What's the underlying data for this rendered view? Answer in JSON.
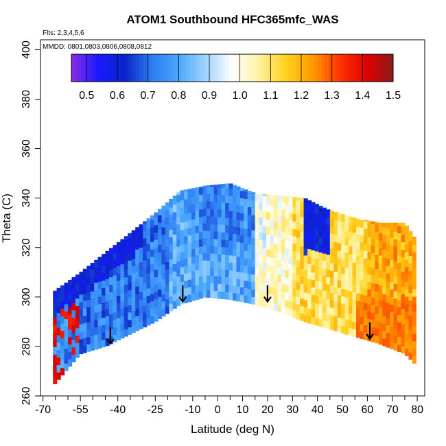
{
  "chart_data": {
    "type": "heatmap",
    "title": "ATOM1 Southbound HFC365mfc_WAS",
    "flights_note": "Flts: 2,3,4,5,6",
    "dates_note": "MMDD: 0801,0803,0806,0808,0812",
    "xlabel": "Latitude (deg N)",
    "ylabel": "Theta (C)",
    "xlim": [
      -71,
      83
    ],
    "ylim": [
      260,
      404
    ],
    "x_ticks": [
      -70,
      -55,
      -40,
      -25,
      -10,
      0,
      10,
      20,
      30,
      40,
      50,
      60,
      70,
      80
    ],
    "x_minor_ticks": [
      -65,
      -60,
      -50,
      -45,
      -35,
      -30,
      -20,
      -15,
      -5,
      5,
      15,
      25,
      35,
      45,
      55,
      65,
      75
    ],
    "y_ticks": [
      260,
      280,
      300,
      320,
      340,
      360,
      380,
      400
    ],
    "colorbar": {
      "ticks": [
        0.5,
        0.6,
        0.7,
        0.8,
        0.9,
        1.0,
        1.1,
        1.2,
        1.3,
        1.4,
        1.5
      ],
      "range": [
        0.45,
        1.5
      ],
      "colors": [
        "#8a2be2",
        "#1a1aff",
        "#0a24c8",
        "#2f7cf0",
        "#4aa8ff",
        "#9fd4ff",
        "#ffffff",
        "#fff2a0",
        "#ffd21e",
        "#ff9a00",
        "#ff3300",
        "#e00000",
        "#8b1a1a"
      ]
    },
    "tropopause_arrows": [
      {
        "lat": -43,
        "theta": 285
      },
      {
        "lat": -14,
        "theta": 302
      },
      {
        "lat": 20,
        "theta": 302
      },
      {
        "lat": 61,
        "theta": 287
      }
    ],
    "data_envelope": {
      "lat": [
        -66,
        -55,
        -45,
        -35,
        -25,
        -15,
        -5,
        5,
        15,
        25,
        35,
        45,
        55,
        65,
        75,
        79
      ],
      "theta_bottom": [
        264,
        277,
        280,
        285,
        290,
        297,
        300,
        299,
        297,
        294,
        290,
        287,
        284,
        281,
        277,
        273
      ],
      "theta_top": [
        302,
        310,
        318,
        326,
        334,
        343,
        345,
        346,
        342,
        341,
        340,
        335,
        332,
        330,
        330,
        324
      ]
    },
    "field_ratio_by_region": [
      {
        "lat_min": -70,
        "lat_max": -60,
        "ratio": 0.75
      },
      {
        "lat_min": -60,
        "lat_max": -20,
        "ratio": 0.72
      },
      {
        "lat_min": -20,
        "lat_max": 15,
        "ratio": 0.8
      },
      {
        "lat_min": 15,
        "lat_max": 30,
        "ratio": 1.02
      },
      {
        "lat_min": 30,
        "lat_max": 60,
        "ratio": 1.12
      },
      {
        "lat_min": 60,
        "lat_max": 80,
        "ratio": 1.2
      }
    ]
  }
}
